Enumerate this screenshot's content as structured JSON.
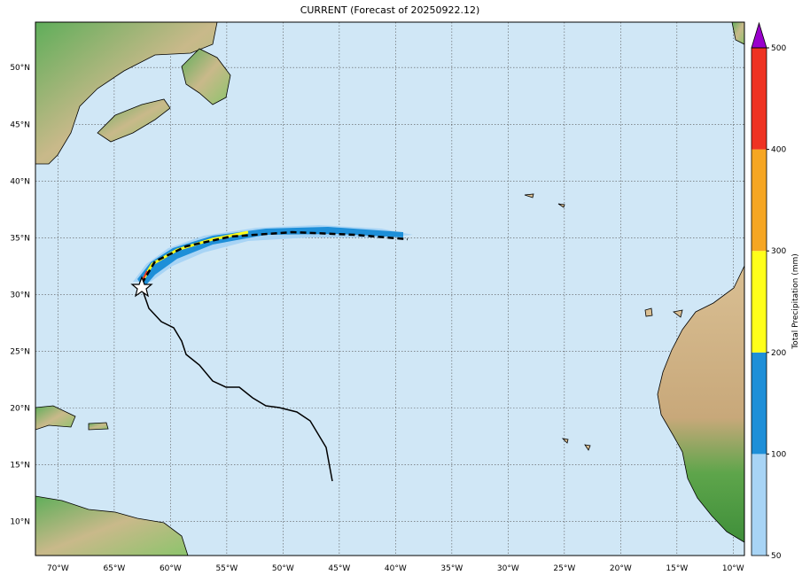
{
  "map": {
    "title": "CURRENT (Forecast of 20250922.12)",
    "lon_range": [
      -72,
      -9
    ],
    "lat_range": [
      7,
      54
    ],
    "lon_ticks": [
      {
        "value": -70,
        "label": "70°W"
      },
      {
        "value": -65,
        "label": "65°W"
      },
      {
        "value": -60,
        "label": "60°W"
      },
      {
        "value": -55,
        "label": "55°W"
      },
      {
        "value": -50,
        "label": "50°W"
      },
      {
        "value": -45,
        "label": "45°W"
      },
      {
        "value": -40,
        "label": "40°W"
      },
      {
        "value": -35,
        "label": "35°W"
      },
      {
        "value": -30,
        "label": "30°W"
      },
      {
        "value": -25,
        "label": "25°W"
      },
      {
        "value": -20,
        "label": "20°W"
      },
      {
        "value": -15,
        "label": "15°W"
      },
      {
        "value": -10,
        "label": "10°W"
      }
    ],
    "lat_ticks": [
      {
        "value": 10,
        "label": "10°N"
      },
      {
        "value": 15,
        "label": "15°N"
      },
      {
        "value": 20,
        "label": "20°N"
      },
      {
        "value": 25,
        "label": "25°N"
      },
      {
        "value": 30,
        "label": "30°N"
      },
      {
        "value": 35,
        "label": "35°N"
      },
      {
        "value": 40,
        "label": "40°N"
      },
      {
        "value": 45,
        "label": "45°N"
      },
      {
        "value": 50,
        "label": "50°N"
      }
    ],
    "colorbar": {
      "label": "Total Precipitation (mm)",
      "ticks": [
        50,
        100,
        200,
        300,
        400,
        500
      ],
      "colors": [
        "#a8d4f5",
        "#1e8fd8",
        "#ffff1a",
        "#f6a623",
        "#ee3322"
      ],
      "extend_color": "#9a00cc"
    }
  }
}
